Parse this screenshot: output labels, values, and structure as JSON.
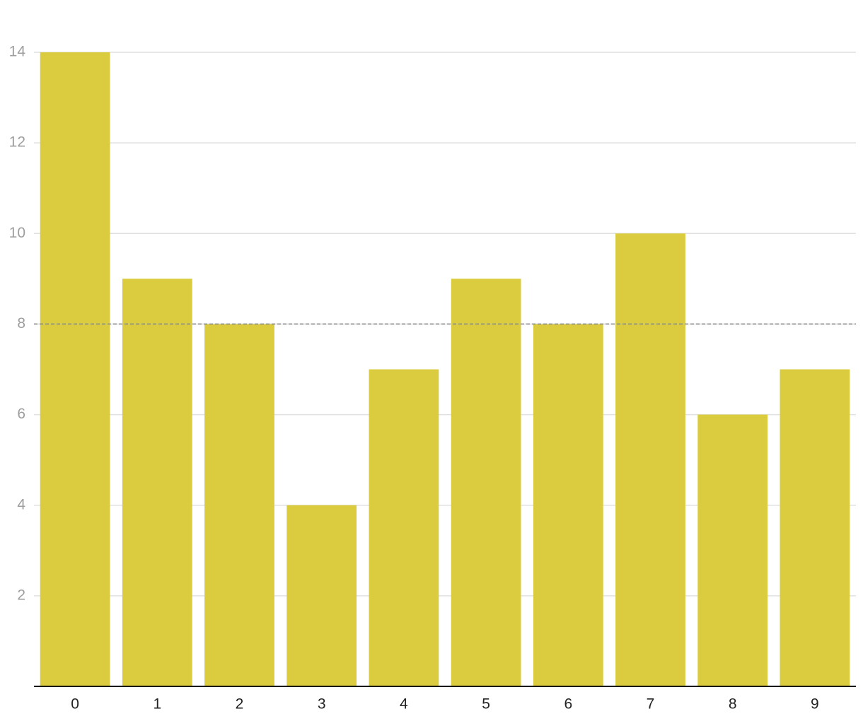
{
  "chart_data": {
    "type": "bar",
    "categories": [
      "0",
      "1",
      "2",
      "3",
      "4",
      "5",
      "6",
      "7",
      "8",
      "9"
    ],
    "values": [
      14,
      9,
      8,
      4,
      7,
      9,
      8,
      10,
      6,
      7
    ],
    "color": "#dacc3e",
    "ylim": [
      0,
      14
    ],
    "yticks": [
      2,
      4,
      6,
      8,
      10,
      12,
      14
    ],
    "grid": true,
    "reference_line": 8
  }
}
